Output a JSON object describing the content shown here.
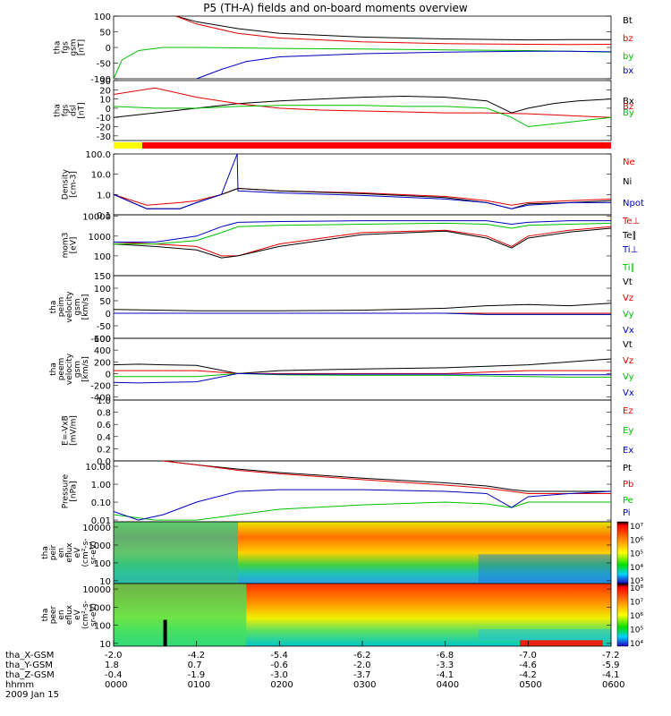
{
  "title": "P5 (TH-A) fields and on-board moments overview",
  "date": "2009 Jan 15",
  "colorbars": {
    "ion": {
      "labels": [
        "10⁷",
        "10⁶",
        "10⁵",
        "10⁴",
        "10³"
      ]
    },
    "elec": {
      "labels": [
        "10⁸",
        "10⁷",
        "10⁶",
        "10⁵",
        "10⁴"
      ]
    }
  },
  "ephemeris": {
    "rows": [
      {
        "label": "tha_X-GSM",
        "values": [
          "-2.0",
          "-4.2",
          "-5.4",
          "-6.2",
          "-6.8",
          "-7.0",
          "-7.2"
        ]
      },
      {
        "label": "tha_Y-GSM",
        "values": [
          "1.8",
          "0.7",
          "-0.6",
          "-2.0",
          "-3.3",
          "-4.6",
          "-5.9"
        ]
      },
      {
        "label": "tha_Z-GSM",
        "values": [
          "-0.4",
          "-1.9",
          "-3.0",
          "-3.7",
          "-4.1",
          "-4.2",
          "-4.1"
        ]
      },
      {
        "label": "hhmm",
        "values": [
          "0000",
          "0100",
          "0200",
          "0300",
          "0400",
          "0500",
          "0600"
        ]
      }
    ]
  },
  "chart_data": [
    {
      "type": "line",
      "id": "fgs_gsm",
      "ylabel": [
        "tha",
        "fgs",
        "gsm",
        "[nT]"
      ],
      "yticks": [
        "100",
        "50",
        "0",
        "-50",
        "-100"
      ],
      "ylim": [
        -100,
        100
      ],
      "series": [
        {
          "name": "Bt",
          "color": "#000000",
          "x": [
            0.75,
            1.0,
            1.5,
            2.0,
            3.0,
            4.0,
            5.0,
            5.5,
            6.0
          ],
          "y": [
            100,
            82,
            60,
            45,
            33,
            27,
            24,
            25,
            25
          ]
        },
        {
          "name": "bz",
          "color": "#e00000",
          "x": [
            0.75,
            1.0,
            1.5,
            2.0,
            3.0,
            4.0,
            5.0,
            5.5,
            6.0
          ],
          "y": [
            100,
            75,
            45,
            30,
            18,
            12,
            10,
            9,
            10
          ]
        },
        {
          "name": "by",
          "color": "#00c000",
          "x": [
            0.0,
            0.1,
            0.3,
            0.6,
            1.0,
            2.0,
            3.0,
            4.0,
            5.0,
            5.5,
            6.0
          ],
          "y": [
            -100,
            -40,
            -10,
            0,
            0,
            -3,
            -5,
            -8,
            -10,
            -12,
            -15
          ]
        },
        {
          "name": "bx",
          "color": "#0000c0",
          "x": [
            1.0,
            1.3,
            1.6,
            2.0,
            3.0,
            4.0,
            5.0,
            5.5,
            6.0
          ],
          "y": [
            -100,
            -70,
            -45,
            -30,
            -20,
            -15,
            -12,
            -12,
            -14
          ]
        }
      ]
    },
    {
      "type": "line",
      "id": "fgs_dsl",
      "ylabel": [
        "tha",
        "fgs",
        "dsl",
        "[nT]"
      ],
      "yticks": [
        "30",
        "20",
        "10",
        "0",
        "-10",
        "-20",
        "-30"
      ],
      "ylim": [
        -35,
        30
      ],
      "series": [
        {
          "name": "Bx",
          "color": "#000000",
          "x": [
            0,
            0.5,
            1.0,
            1.5,
            2.0,
            2.5,
            3.0,
            3.5,
            4.0,
            4.5,
            4.8,
            5.0,
            5.3,
            5.6,
            6.0
          ],
          "y": [
            -10,
            -5,
            0,
            5,
            8,
            10,
            12,
            13,
            12,
            8,
            -5,
            0,
            5,
            8,
            10
          ]
        },
        {
          "name": "Bz",
          "color": "#e00000",
          "x": [
            0,
            0.5,
            1.0,
            1.5,
            2.0,
            2.5,
            3.0,
            3.5,
            4.0,
            4.5,
            5.0,
            5.5,
            6.0
          ],
          "y": [
            15,
            22,
            12,
            5,
            0,
            -2,
            -3,
            -4,
            -5,
            -5,
            -6,
            -8,
            -10
          ]
        },
        {
          "name": "By",
          "color": "#00c000",
          "x": [
            0,
            0.5,
            1.0,
            1.5,
            2.0,
            2.5,
            3.0,
            3.5,
            4.0,
            4.5,
            4.8,
            5.0,
            5.5,
            6.0
          ],
          "y": [
            2,
            0,
            0,
            2,
            3,
            3,
            3,
            2,
            2,
            0,
            -10,
            -20,
            -15,
            -10
          ]
        }
      ]
    },
    {
      "type": "line",
      "id": "density",
      "ylabel": [
        "Density",
        "[cm-3]"
      ],
      "yticks": [
        "100.0",
        "10.0",
        "1.0",
        "0.1"
      ],
      "ylim": [
        0.1,
        100
      ],
      "yscale": "log",
      "series": [
        {
          "name": "Ne",
          "color": "#e00000",
          "x": [
            0,
            0.4,
            0.8,
            1.0,
            1.3,
            1.5,
            2.0,
            3.0,
            4.0,
            4.5,
            4.8,
            5.0,
            5.5,
            6.0
          ],
          "y": [
            1.0,
            0.3,
            0.4,
            0.5,
            1.0,
            2.0,
            1.5,
            1.2,
            0.8,
            0.5,
            0.3,
            0.4,
            0.5,
            0.6
          ]
        },
        {
          "name": "Ni",
          "color": "#000000",
          "x": [
            0,
            0.4,
            0.8,
            1.0,
            1.3,
            1.5,
            2.0,
            3.0,
            4.0,
            4.5,
            4.8,
            5.0,
            5.5,
            6.0
          ],
          "y": [
            1.0,
            0.2,
            0.2,
            0.4,
            1.0,
            2.0,
            1.5,
            1.1,
            0.7,
            0.4,
            0.2,
            0.35,
            0.4,
            0.5
          ]
        },
        {
          "name": "Npot",
          "color": "#0000c0",
          "x": [
            0,
            0.4,
            0.8,
            1.0,
            1.3,
            1.49,
            1.5,
            2.0,
            3.0,
            4.0,
            4.5,
            4.8,
            5.0,
            5.5,
            6.0
          ],
          "y": [
            1.0,
            0.2,
            0.2,
            0.4,
            1.0,
            100,
            1.5,
            1.2,
            0.9,
            0.6,
            0.4,
            0.2,
            0.3,
            0.4,
            0.4
          ]
        }
      ]
    },
    {
      "type": "line",
      "id": "temperature",
      "ylabel": [
        "mom3",
        "[eV]"
      ],
      "yticks": [
        "10000",
        "1000",
        "100"
      ],
      "ylim": [
        10,
        12000
      ],
      "yscale": "log",
      "series": [
        {
          "name": "Te⊥",
          "color": "#e00000",
          "x": [
            0,
            0.5,
            1.0,
            1.3,
            1.5,
            2.0,
            3.0,
            4.0,
            4.5,
            4.8,
            5.0,
            5.5,
            6.0
          ],
          "y": [
            500,
            400,
            300,
            100,
            100,
            400,
            1500,
            2000,
            1000,
            300,
            1000,
            2000,
            3000
          ]
        },
        {
          "name": "Te∥",
          "color": "#000000",
          "x": [
            0,
            0.5,
            1.0,
            1.3,
            1.5,
            2.0,
            3.0,
            4.0,
            4.5,
            4.8,
            5.0,
            5.5,
            6.0
          ],
          "y": [
            400,
            300,
            200,
            80,
            100,
            300,
            1200,
            1800,
            800,
            250,
            800,
            1600,
            2500
          ]
        },
        {
          "name": "Ti⊥",
          "color": "#0000c0",
          "x": [
            0,
            0.5,
            1.0,
            1.3,
            1.5,
            2.0,
            3.0,
            4.0,
            4.5,
            4.8,
            5.0,
            5.5,
            6.0
          ],
          "y": [
            500,
            500,
            1000,
            3000,
            5000,
            5500,
            6000,
            6000,
            6000,
            4000,
            5000,
            6000,
            6000
          ]
        },
        {
          "name": "Ti∥",
          "color": "#00c000",
          "x": [
            0,
            0.5,
            1.0,
            1.3,
            1.5,
            2.0,
            3.0,
            4.0,
            4.5,
            4.8,
            5.0,
            5.5,
            6.0
          ],
          "y": [
            400,
            400,
            600,
            1500,
            3000,
            3500,
            4000,
            4500,
            4000,
            2500,
            3500,
            4000,
            4500
          ]
        }
      ]
    },
    {
      "type": "line",
      "id": "peim_velocity",
      "ylabel": [
        "tha",
        "peim",
        "velocity",
        "gsm",
        "[km/s]"
      ],
      "yticks": [
        "150",
        "100",
        "50",
        "0",
        "-50",
        "-100"
      ],
      "ylim": [
        -100,
        150
      ],
      "series": [
        {
          "name": "Vt",
          "color": "#000000",
          "x": [
            0,
            1,
            2,
            3,
            4,
            4.5,
            5,
            5.5,
            6
          ],
          "y": [
            15,
            10,
            10,
            12,
            20,
            30,
            35,
            30,
            40
          ]
        },
        {
          "name": "Vz",
          "color": "#e00000",
          "x": [
            0,
            1,
            2,
            3,
            4,
            4.5,
            5,
            5.5,
            6
          ],
          "y": [
            0,
            0,
            0,
            0,
            0,
            0,
            0,
            0,
            0
          ]
        },
        {
          "name": "Vy",
          "color": "#00c000",
          "x": [
            0,
            1,
            2,
            3,
            4,
            4.5,
            5,
            5.5,
            6
          ],
          "y": [
            0,
            0,
            0,
            0,
            0,
            -5,
            -5,
            -5,
            -5
          ]
        },
        {
          "name": "Vx",
          "color": "#0000c0",
          "x": [
            0,
            1,
            2,
            3,
            4,
            4.5,
            5,
            5.5,
            6
          ],
          "y": [
            0,
            0,
            0,
            0,
            0,
            -5,
            -5,
            -5,
            -5
          ]
        }
      ]
    },
    {
      "type": "line",
      "id": "peem_velocity",
      "ylabel": [
        "tha",
        "peem",
        "velocity",
        "gsm",
        "[km/s]"
      ],
      "yticks": [
        "600",
        "400",
        "200",
        "0",
        "-200",
        "-400"
      ],
      "ylim": [
        -450,
        600
      ],
      "series": [
        {
          "name": "Vt",
          "color": "#000000",
          "x": [
            0,
            0.3,
            0.6,
            1.0,
            1.5,
            2.0,
            3.0,
            4.0,
            5.0,
            5.5,
            6.0
          ],
          "y": [
            150,
            160,
            150,
            140,
            0,
            50,
            80,
            100,
            150,
            200,
            250
          ]
        },
        {
          "name": "Vz",
          "color": "#e00000",
          "x": [
            0,
            0.3,
            0.6,
            1.0,
            1.5,
            2.0,
            3.0,
            4.0,
            5.0,
            5.5,
            6.0
          ],
          "y": [
            50,
            50,
            50,
            50,
            0,
            0,
            0,
            0,
            50,
            50,
            50
          ]
        },
        {
          "name": "Vy",
          "color": "#00c000",
          "x": [
            0,
            0.3,
            0.6,
            1.0,
            1.5,
            2.0,
            3.0,
            4.0,
            5.0,
            5.5,
            6.0
          ],
          "y": [
            -50,
            -50,
            -50,
            -50,
            0,
            -20,
            -30,
            -30,
            -50,
            -60,
            -60
          ]
        },
        {
          "name": "Vx",
          "color": "#0000c0",
          "x": [
            0,
            0.3,
            0.6,
            1.0,
            1.5,
            2.0,
            3.0,
            4.0,
            5.0,
            5.5,
            6.0
          ],
          "y": [
            -150,
            -160,
            -150,
            -140,
            0,
            -10,
            -10,
            -10,
            -20,
            -20,
            -20
          ]
        }
      ]
    },
    {
      "type": "line",
      "id": "efield",
      "ylabel": [
        "E=-VxB",
        "[mV/m]"
      ],
      "yticks": [
        "1.0",
        "0.8",
        "0.6",
        "0.4",
        "0.2",
        "0.0"
      ],
      "ylim": [
        0,
        1.0
      ],
      "series": [
        {
          "name": "Ez",
          "color": "#e00000",
          "x": [],
          "y": []
        },
        {
          "name": "Ey",
          "color": "#00c000",
          "x": [],
          "y": []
        },
        {
          "name": "Ex",
          "color": "#0000c0",
          "x": [],
          "y": []
        }
      ]
    },
    {
      "type": "line",
      "id": "pressure",
      "ylabel": [
        "Pressure",
        "[nPa]"
      ],
      "yticks": [
        "10.00",
        "1.00",
        "0.10",
        "0.01"
      ],
      "ylim": [
        0.008,
        20
      ],
      "yscale": "log",
      "series": [
        {
          "name": "Pt",
          "color": "#000000",
          "x": [
            0.6,
            1.0,
            1.5,
            2.0,
            3.0,
            4.0,
            4.5,
            4.8,
            5.0,
            5.5,
            6.0
          ],
          "y": [
            20,
            12,
            7,
            4.5,
            2.2,
            1.2,
            0.8,
            0.5,
            0.4,
            0.4,
            0.4
          ]
        },
        {
          "name": "Pb",
          "color": "#e00000",
          "x": [
            0.6,
            1.0,
            1.5,
            2.0,
            3.0,
            4.0,
            4.5,
            4.8,
            5.0,
            5.5,
            6.0
          ],
          "y": [
            20,
            12,
            6,
            3.8,
            1.8,
            0.9,
            0.6,
            0.4,
            0.3,
            0.3,
            0.3
          ]
        },
        {
          "name": "Pe",
          "color": "#00c000",
          "x": [
            0,
            0.5,
            1.0,
            1.3,
            1.5,
            2.0,
            3.0,
            4.0,
            4.5,
            4.8,
            5.0,
            5.5,
            6.0
          ],
          "y": [
            0.02,
            0.01,
            0.01,
            0.015,
            0.02,
            0.04,
            0.07,
            0.1,
            0.08,
            0.05,
            0.1,
            0.1,
            0.1
          ]
        },
        {
          "name": "Pi",
          "color": "#0000c0",
          "x": [
            0,
            0.3,
            0.6,
            1.0,
            1.5,
            2.0,
            3.0,
            4.0,
            4.5,
            4.8,
            5.0,
            5.5,
            6.0
          ],
          "y": [
            0.03,
            0.01,
            0.02,
            0.1,
            0.4,
            0.5,
            0.5,
            0.4,
            0.3,
            0.05,
            0.2,
            0.3,
            0.4
          ]
        }
      ]
    },
    {
      "type": "heatmap",
      "id": "ion_spectrogram",
      "ylabel": [
        "tha",
        "peir",
        "en",
        "eflux",
        "eV",
        "(cm²-s-",
        "sr-eV)"
      ],
      "yticks": [
        "10000",
        "1000",
        "100",
        "10"
      ],
      "yscale": "log",
      "ylim": [
        7,
        20000
      ],
      "zscale": "log",
      "zlim": [
        1000,
        10000000
      ]
    },
    {
      "type": "heatmap",
      "id": "electron_spectrogram",
      "ylabel": [
        "tha",
        "peer",
        "en",
        "eflux",
        "eV",
        "(cm²-s-",
        "sr-eV)"
      ],
      "yticks": [
        "10000",
        "1000",
        "100",
        "10"
      ],
      "yscale": "log",
      "ylim": [
        7,
        20000
      ],
      "zscale": "log",
      "zlim": [
        10000,
        100000000
      ]
    }
  ]
}
